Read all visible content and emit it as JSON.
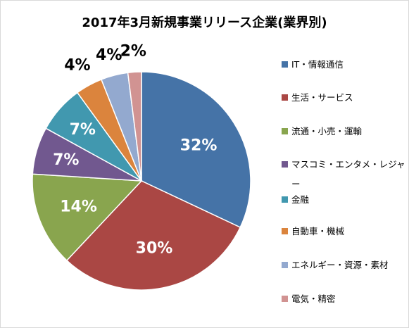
{
  "chart_data": {
    "type": "pie",
    "title": "2017年3月新規事業リリース企業(業界別)",
    "slices": [
      {
        "label": "IT・情報通信",
        "value": 32,
        "display": "32%",
        "color": "#4573a7"
      },
      {
        "label": "生活・サービス",
        "value": 30,
        "display": "30%",
        "color": "#aa4744"
      },
      {
        "label": "流通・小売・運輸",
        "value": 14,
        "display": "14%",
        "color": "#89a54e"
      },
      {
        "label": "マスコミ・エンタメ・レジャー",
        "value": 7,
        "display": "7%",
        "color": "#71588f"
      },
      {
        "label": "金融",
        "value": 7,
        "display": "7%",
        "color": "#4198af"
      },
      {
        "label": "自動車・機械",
        "value": 4,
        "display": "4%",
        "color": "#db843d"
      },
      {
        "label": "エネルギー・資源・素材",
        "value": 4,
        "display": "4%",
        "color": "#93a9cf"
      },
      {
        "label": "電気・精密",
        "value": 2,
        "display": "2%",
        "color": "#d19392"
      }
    ],
    "legend_position": "right",
    "start": "12 o'clock, clockwise"
  }
}
